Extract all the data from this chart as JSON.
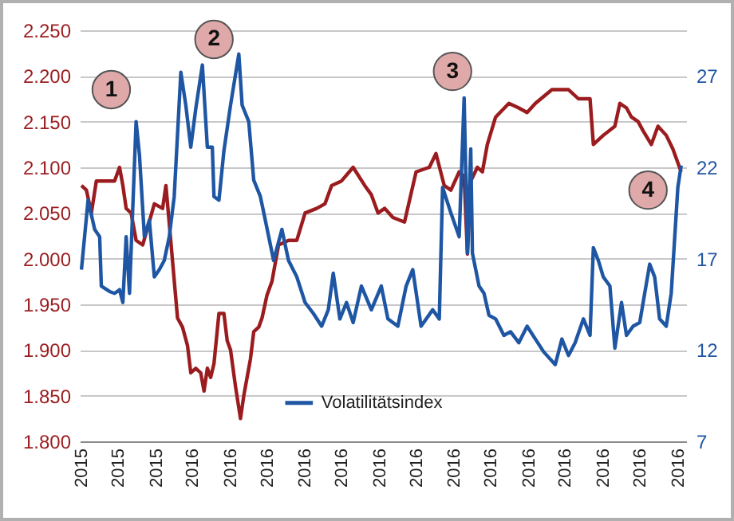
{
  "chart_data": {
    "type": "line",
    "xlim": [
      "2015-11-07",
      "2016-11-07"
    ],
    "xticks": [
      {
        "value": "2015-11-08",
        "label": "2015"
      },
      {
        "value": "2015-11-30",
        "label": "2015"
      },
      {
        "value": "2015-12-23",
        "label": "2015"
      },
      {
        "value": "2016-01-14",
        "label": "2016"
      },
      {
        "value": "2016-02-06",
        "label": "2016"
      },
      {
        "value": "2016-02-28",
        "label": "2016"
      },
      {
        "value": "2016-03-22",
        "label": "2016"
      },
      {
        "value": "2016-04-13",
        "label": "2016"
      },
      {
        "value": "2016-05-06",
        "label": "2016"
      },
      {
        "value": "2016-05-28",
        "label": "2016"
      },
      {
        "value": "2016-06-20",
        "label": "2016"
      },
      {
        "value": "2016-07-12",
        "label": "2016"
      },
      {
        "value": "2016-08-04",
        "label": "2016"
      },
      {
        "value": "2016-08-26",
        "label": "2016"
      },
      {
        "value": "2016-09-18",
        "label": "2016"
      },
      {
        "value": "2016-10-10",
        "label": "2016"
      },
      {
        "value": "2016-11-02",
        "label": "2016"
      }
    ],
    "ylim": [
      1800,
      2250
    ],
    "yticks": [
      {
        "value": 1800,
        "label": "1.800"
      },
      {
        "value": 1850,
        "label": "1.850"
      },
      {
        "value": 1900,
        "label": "1.900"
      },
      {
        "value": 1950,
        "label": "1.950"
      },
      {
        "value": 2000,
        "label": "2.000"
      },
      {
        "value": 2050,
        "label": "2.050"
      },
      {
        "value": 2100,
        "label": "2.100"
      },
      {
        "value": 2150,
        "label": "2.150"
      },
      {
        "value": 2200,
        "label": "2.200"
      },
      {
        "value": 2250,
        "label": "2.250"
      }
    ],
    "y2lim": [
      7,
      29.5
    ],
    "y2ticks": [
      7,
      12,
      17,
      22,
      27
    ],
    "grid": "y",
    "legend": "bottom",
    "series": [
      {
        "color": "#9b1c1f",
        "x": [
          "2015-11-08",
          "2015-11-11",
          "2015-11-14",
          "2015-11-17",
          "2015-11-22",
          "2015-11-28",
          "2015-12-01",
          "2015-12-03",
          "2015-12-05",
          "2015-12-08",
          "2015-12-11",
          "2015-12-15",
          "2015-12-22",
          "2015-12-27",
          "2015-12-29",
          "2016-01-05",
          "2016-01-08",
          "2016-01-11",
          "2016-01-13",
          "2016-01-16",
          "2016-01-19",
          "2016-01-21",
          "2016-01-23",
          "2016-01-25",
          "2016-01-27",
          "2016-01-30",
          "2016-02-02",
          "2016-02-04",
          "2016-02-06",
          "2016-02-09",
          "2016-02-12",
          "2016-02-14",
          "2016-02-17",
          "2016-02-18",
          "2016-02-20",
          "2016-02-23",
          "2016-02-25",
          "2016-02-28",
          "2016-03-02",
          "2016-03-06",
          "2016-03-12",
          "2016-03-17",
          "2016-03-22",
          "2016-03-29",
          "2016-04-03",
          "2016-04-07",
          "2016-04-13",
          "2016-04-20",
          "2016-04-27",
          "2016-05-01",
          "2016-05-05",
          "2016-05-09",
          "2016-05-14",
          "2016-05-21",
          "2016-05-28",
          "2016-06-05",
          "2016-06-09",
          "2016-06-14",
          "2016-06-18",
          "2016-06-23",
          "2016-06-26",
          "2016-06-28",
          "2016-06-30",
          "2016-07-04",
          "2016-07-07",
          "2016-07-10",
          "2016-07-15",
          "2016-07-23",
          "2016-07-29",
          "2016-08-03",
          "2016-08-08",
          "2016-08-18",
          "2016-08-28",
          "2016-09-03",
          "2016-09-10",
          "2016-09-12",
          "2016-09-18",
          "2016-09-25",
          "2016-09-28",
          "2016-10-02",
          "2016-10-05",
          "2016-10-09",
          "2016-10-12",
          "2016-10-17",
          "2016-10-21",
          "2016-10-26",
          "2016-10-30",
          "2016-11-04"
        ],
        "values": [
          2080,
          2075,
          2050,
          2085,
          2085,
          2085,
          2100,
          2080,
          2055,
          2050,
          2020,
          2015,
          2060,
          2055,
          2080,
          1935,
          1925,
          1905,
          1875,
          1880,
          1875,
          1855,
          1880,
          1870,
          1885,
          1940,
          1940,
          1910,
          1900,
          1860,
          1825,
          1850,
          1880,
          1890,
          1920,
          1925,
          1935,
          1960,
          1975,
          2015,
          2020,
          2020,
          2050,
          2055,
          2060,
          2080,
          2085,
          2100,
          2080,
          2070,
          2050,
          2055,
          2045,
          2040,
          2095,
          2100,
          2115,
          2080,
          2075,
          2095,
          2090,
          2005,
          2085,
          2100,
          2095,
          2125,
          2155,
          2170,
          2165,
          2160,
          2170,
          2185,
          2185,
          2175,
          2175,
          2125,
          2135,
          2145,
          2170,
          2165,
          2155,
          2150,
          2140,
          2125,
          2145,
          2135,
          2120,
          2095
        ]
      },
      {
        "name": "Volatilitätsindex",
        "color": "#1f56a3",
        "axis": "y2",
        "x": [
          "2015-11-08",
          "2015-11-12",
          "2015-11-16",
          "2015-11-19",
          "2015-11-20",
          "2015-11-25",
          "2015-11-28",
          "2015-12-01",
          "2015-12-03",
          "2015-12-05",
          "2015-12-07",
          "2015-12-11",
          "2015-12-13",
          "2015-12-16",
          "2015-12-19",
          "2015-12-22",
          "2015-12-25",
          "2015-12-28",
          "2015-12-31",
          "2016-01-03",
          "2016-01-07",
          "2016-01-10",
          "2016-01-13",
          "2016-01-16",
          "2016-01-20",
          "2016-01-23",
          "2016-01-26",
          "2016-01-27",
          "2016-01-30",
          "2016-02-02",
          "2016-02-06",
          "2016-02-11",
          "2016-02-13",
          "2016-02-17",
          "2016-02-20",
          "2016-02-24",
          "2016-02-27",
          "2016-03-03",
          "2016-03-08",
          "2016-03-12",
          "2016-03-17",
          "2016-03-22",
          "2016-03-27",
          "2016-04-01",
          "2016-04-05",
          "2016-04-08",
          "2016-04-12",
          "2016-04-16",
          "2016-04-20",
          "2016-04-25",
          "2016-05-01",
          "2016-05-07",
          "2016-05-11",
          "2016-05-17",
          "2016-05-22",
          "2016-05-26",
          "2016-05-31",
          "2016-06-07",
          "2016-06-11",
          "2016-06-13",
          "2016-06-18",
          "2016-06-23",
          "2016-06-26",
          "2016-06-28",
          "2016-06-30",
          "2016-07-01",
          "2016-07-05",
          "2016-07-08",
          "2016-07-11",
          "2016-07-15",
          "2016-07-20",
          "2016-07-24",
          "2016-07-29",
          "2016-08-03",
          "2016-08-08",
          "2016-08-13",
          "2016-08-20",
          "2016-08-24",
          "2016-08-28",
          "2016-09-01",
          "2016-09-06",
          "2016-09-10",
          "2016-09-12",
          "2016-09-15",
          "2016-09-18",
          "2016-09-22",
          "2016-09-25",
          "2016-09-29",
          "2016-10-02",
          "2016-10-06",
          "2016-10-10",
          "2016-10-16",
          "2016-10-19",
          "2016-10-22",
          "2016-10-26",
          "2016-10-29",
          "2016-11-02",
          "2016-11-04"
        ],
        "values": [
          16.4,
          20.2,
          18.6,
          18.2,
          15.5,
          15.2,
          15.1,
          15.3,
          14.6,
          18.2,
          15.1,
          24.5,
          22.7,
          18.2,
          19.1,
          16.0,
          16.4,
          16.9,
          18.2,
          20.4,
          27.2,
          25.4,
          23.1,
          25.2,
          27.6,
          23.1,
          23.1,
          20.4,
          20.2,
          22.9,
          25.4,
          28.2,
          25.4,
          24.5,
          21.3,
          20.4,
          19.1,
          16.9,
          18.6,
          16.9,
          16.0,
          14.6,
          14.0,
          13.3,
          14.2,
          16.2,
          13.7,
          14.6,
          13.5,
          15.5,
          14.2,
          15.5,
          13.7,
          13.3,
          15.5,
          16.4,
          13.3,
          14.2,
          13.7,
          20.9,
          19.5,
          18.2,
          25.8,
          17.3,
          23.0,
          17.3,
          15.5,
          15.1,
          13.9,
          13.7,
          12.8,
          13.0,
          12.4,
          13.3,
          12.6,
          11.9,
          11.2,
          12.6,
          11.7,
          12.4,
          13.7,
          12.8,
          17.6,
          16.9,
          16.0,
          15.5,
          12.1,
          14.6,
          12.8,
          13.3,
          13.5,
          16.7,
          16.0,
          13.7,
          13.3,
          15.1,
          20.9,
          22.1
        ]
      }
    ],
    "annotations": [
      {
        "text": "1",
        "x": "2015-11-26",
        "y": 2185
      },
      {
        "text": "2",
        "x": "2016-01-27",
        "y": 2240
      },
      {
        "text": "3",
        "x": "2016-06-19",
        "y": 2205
      },
      {
        "text": "4",
        "x": "2016-10-15",
        "y": 2075
      }
    ]
  }
}
